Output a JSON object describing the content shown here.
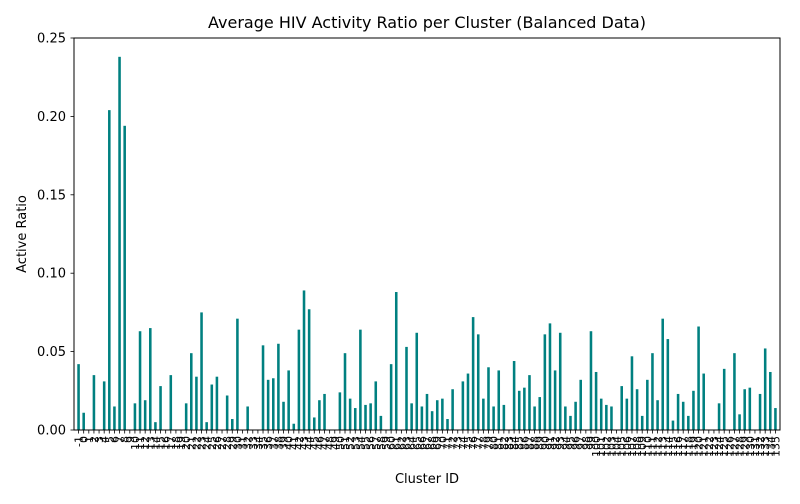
{
  "chart_data": {
    "type": "bar",
    "title": "Average HIV Activity Ratio per Cluster (Balanced Data)",
    "xlabel": "Cluster ID",
    "ylabel": "Active Ratio",
    "ylim": [
      0,
      0.25
    ],
    "yticks": [
      "0.00",
      "0.05",
      "0.10",
      "0.15",
      "0.20",
      "0.25"
    ],
    "ytick_values": [
      0,
      0.05,
      0.1,
      0.15,
      0.2,
      0.25
    ],
    "grid": false,
    "bar_color": "#008080",
    "categories": [
      "-1",
      "0",
      "1",
      "2",
      "3",
      "4",
      "5",
      "6",
      "7",
      "8",
      "9",
      "10",
      "11",
      "12",
      "13",
      "14",
      "15",
      "16",
      "17",
      "18",
      "19",
      "20",
      "21",
      "22",
      "23",
      "24",
      "25",
      "26",
      "27",
      "28",
      "29",
      "30",
      "31",
      "32",
      "33",
      "34",
      "35",
      "36",
      "37",
      "38",
      "39",
      "40",
      "41",
      "42",
      "43",
      "44",
      "45",
      "46",
      "47",
      "48",
      "49",
      "50",
      "51",
      "52",
      "53",
      "54",
      "55",
      "56",
      "57",
      "58",
      "59",
      "60",
      "61",
      "62",
      "63",
      "64",
      "65",
      "66",
      "67",
      "68",
      "69",
      "70",
      "71",
      "72",
      "73",
      "74",
      "75",
      "76",
      "77",
      "78",
      "79",
      "80",
      "81",
      "82",
      "83",
      "84",
      "85",
      "86",
      "87",
      "88",
      "89",
      "90",
      "91",
      "92",
      "93",
      "94",
      "95",
      "96",
      "97",
      "98",
      "99",
      "100",
      "101",
      "102",
      "103",
      "104",
      "105",
      "106",
      "107",
      "108",
      "109",
      "110",
      "111",
      "112",
      "113",
      "114",
      "115",
      "116",
      "117",
      "118",
      "119",
      "120",
      "121",
      "122",
      "123",
      "124",
      "125",
      "126",
      "127",
      "128",
      "129",
      "130",
      "131",
      "132",
      "133",
      "134",
      "135"
    ],
    "values": [
      0.042,
      0.011,
      0,
      0.035,
      0,
      0.031,
      0.204,
      0.015,
      0.238,
      0.194,
      0,
      0.017,
      0.063,
      0.019,
      0.065,
      0.005,
      0.028,
      0,
      0.035,
      0,
      0,
      0.017,
      0.049,
      0.034,
      0.075,
      0.005,
      0.029,
      0.034,
      0,
      0.022,
      0.007,
      0.071,
      0,
      0.015,
      0,
      0,
      0.054,
      0.032,
      0.033,
      0.055,
      0.018,
      0.038,
      0.004,
      0.064,
      0.089,
      0.077,
      0.008,
      0.019,
      0.023,
      0,
      0,
      0.024,
      0.049,
      0.02,
      0.014,
      0.064,
      0.016,
      0.017,
      0.031,
      0.009,
      0,
      0.042,
      0.088,
      0,
      0.053,
      0.017,
      0.062,
      0.015,
      0.023,
      0.012,
      0.019,
      0.02,
      0.007,
      0.026,
      0,
      0.031,
      0.036,
      0.072,
      0.061,
      0.02,
      0.04,
      0.015,
      0.038,
      0.016,
      0,
      0.044,
      0.025,
      0.027,
      0.035,
      0.015,
      0.021,
      0.061,
      0.068,
      0.038,
      0.062,
      0.015,
      0.009,
      0.018,
      0.032,
      0,
      0.063,
      0.037,
      0.02,
      0.016,
      0.015,
      0,
      0.028,
      0.02,
      0.047,
      0.026,
      0.009,
      0.032,
      0.049,
      0.019,
      0.071,
      0.058,
      0.006,
      0.023,
      0.018,
      0.009,
      0.025,
      0.066,
      0.036,
      0,
      0,
      0.017,
      0.039,
      0,
      0.049,
      0.01,
      0.026,
      0.027,
      0,
      0.023,
      0.052,
      0.037,
      0.014
    ]
  }
}
